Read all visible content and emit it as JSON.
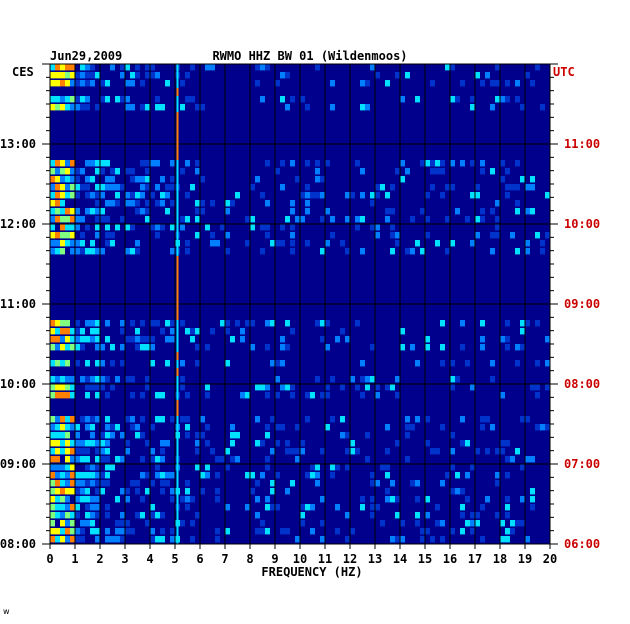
{
  "chart_data": {
    "type": "heatmap",
    "header_date": "Jun29,2009",
    "title": "RWMO HHZ BW 01 (Wildenmoos)",
    "left_timezone": "CES",
    "right_timezone": "UTC",
    "xlabel": "FREQUENCY (HZ)",
    "xlim": [
      0,
      20
    ],
    "x_ticks": [
      "0",
      "1",
      "2",
      "3",
      "4",
      "5",
      "6",
      "7",
      "8",
      "9",
      "10",
      "11",
      "12",
      "13",
      "14",
      "15",
      "16",
      "17",
      "18",
      "19",
      "20"
    ],
    "left_time_ticks": [
      "08:00",
      "09:00",
      "10:00",
      "11:00",
      "12:00",
      "13:00"
    ],
    "right_time_ticks": [
      "06:00",
      "07:00",
      "08:00",
      "09:00",
      "10:00",
      "11:00"
    ],
    "time_range_ces": [
      "08:00",
      "14:00"
    ],
    "colorscale": [
      "#00008c",
      "#0033cc",
      "#0080ff",
      "#00e0ff",
      "#80ff80",
      "#ffff00",
      "#ff8000",
      "#cc0000"
    ],
    "tremor_line_hz": 5.1,
    "rows_activity": [
      1,
      1,
      1,
      0,
      1,
      1,
      0,
      0,
      0,
      0,
      0,
      0,
      1,
      1,
      1,
      1,
      1,
      1,
      1,
      1,
      1,
      1,
      1,
      1,
      0,
      0,
      0,
      0,
      0,
      0,
      0,
      0,
      1,
      1,
      1,
      1,
      0,
      1,
      0,
      1,
      1,
      1,
      0,
      0,
      1,
      1,
      1,
      1,
      1,
      1,
      1,
      1,
      1,
      1,
      1,
      1,
      1,
      1,
      1,
      1
    ]
  },
  "footer_mark": "w"
}
